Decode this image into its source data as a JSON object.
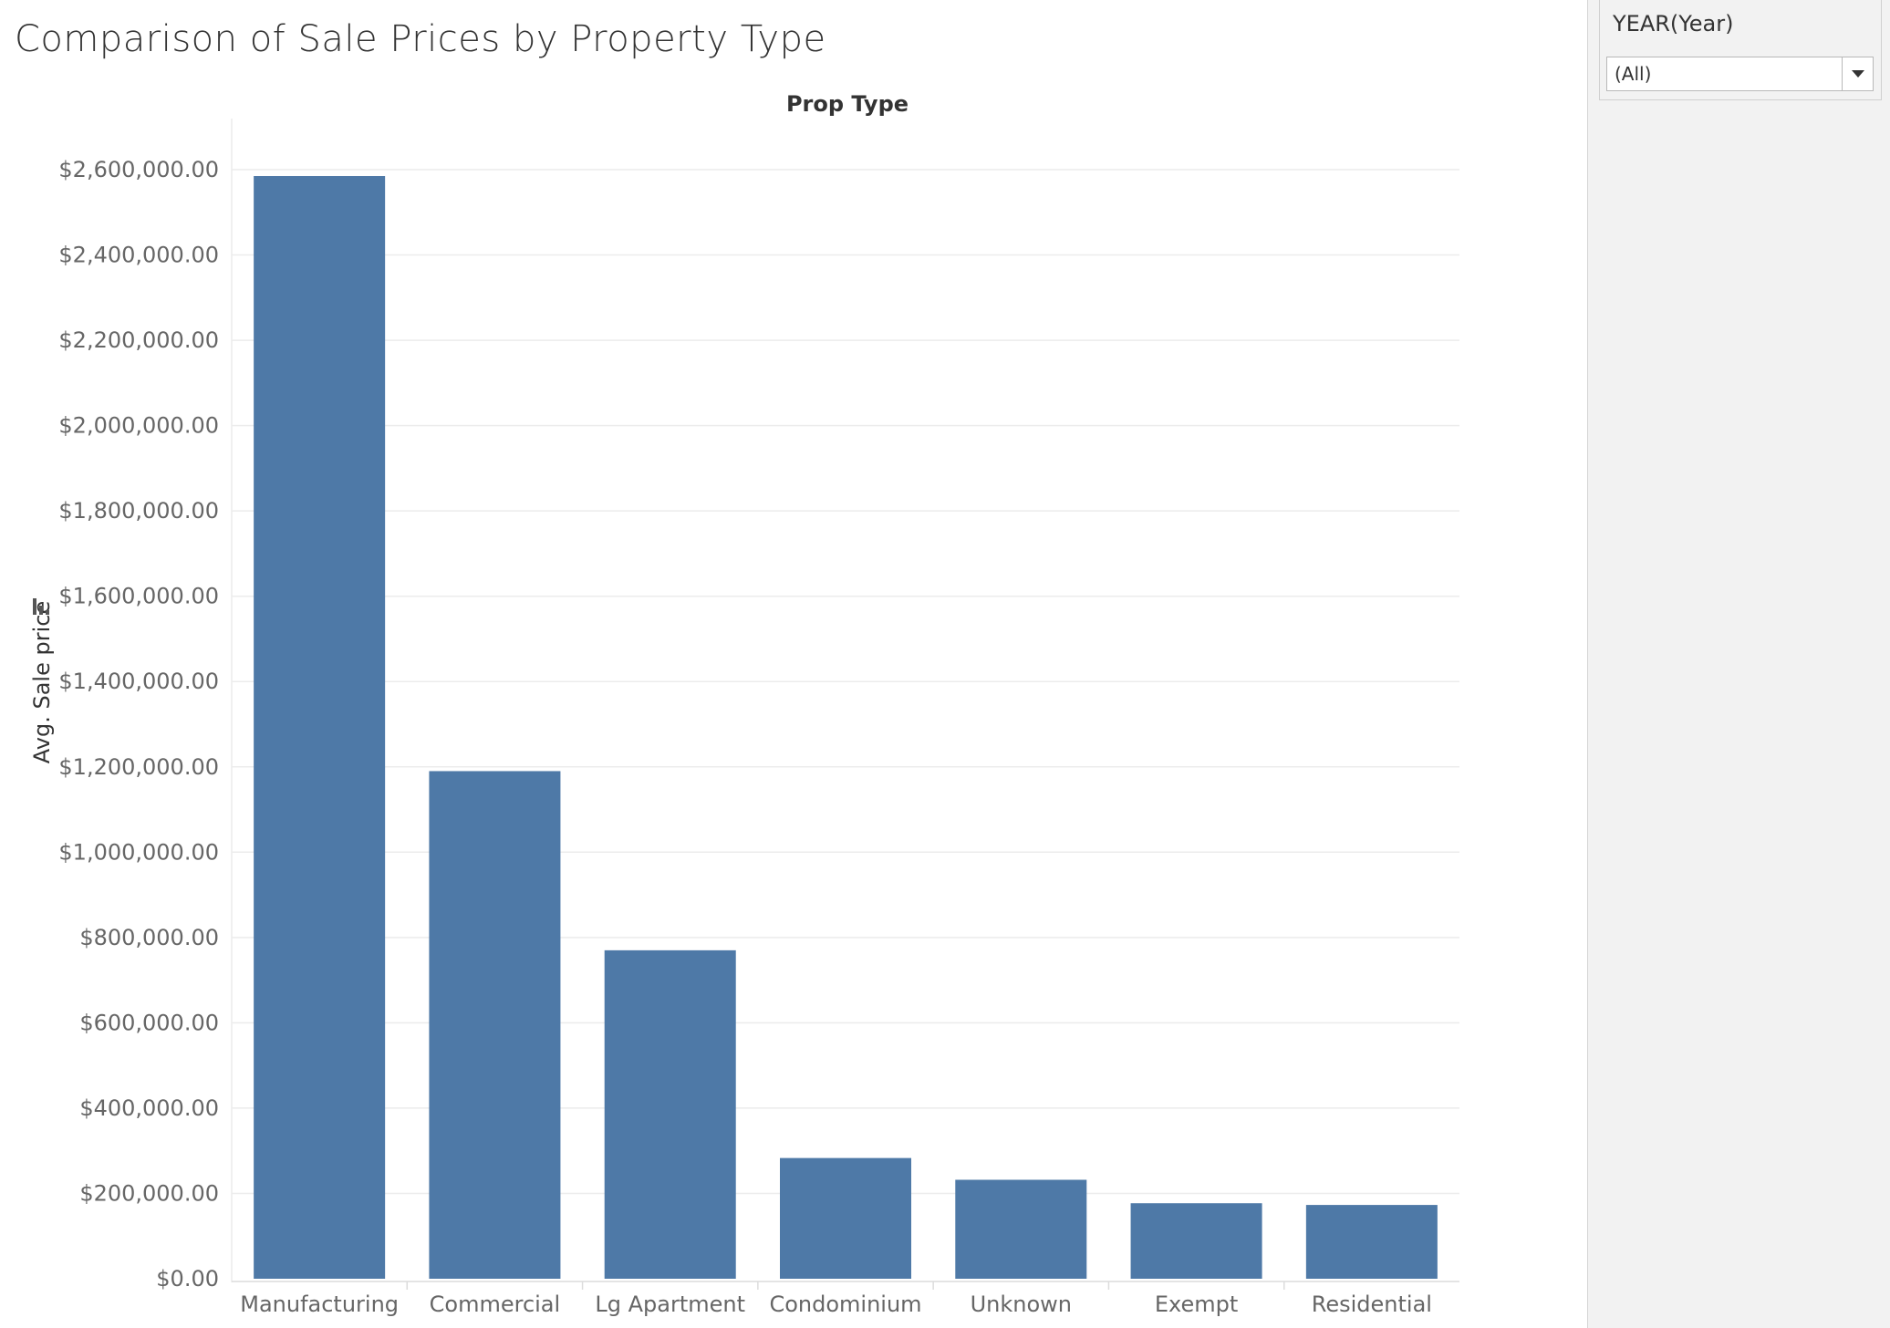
{
  "title": "Comparison of Sale Prices by Property Type",
  "filter": {
    "label": "YEAR(Year)",
    "value": "(All)"
  },
  "colors": {
    "bar": "#4e79a7",
    "grid": "#ececec",
    "axis_text": "#666666",
    "header_text": "#333333",
    "panel_bg": "#f2f2f2"
  },
  "chart_data": {
    "type": "bar",
    "title": "Comparison of Sale Prices by Property Type",
    "xlabel": "Prop Type",
    "ylabel": "Avg. Sale price",
    "categories": [
      "Manufacturing",
      "Commercial",
      "Lg Apartment",
      "Condominium",
      "Unknown",
      "Exempt",
      "Residential"
    ],
    "values": [
      2585000,
      1190000,
      770000,
      283000,
      232000,
      177000,
      173000
    ],
    "ylim": [
      0,
      2700000
    ],
    "yticks": [
      0,
      200000,
      400000,
      600000,
      800000,
      1000000,
      1200000,
      1400000,
      1600000,
      1800000,
      2000000,
      2200000,
      2400000,
      2600000
    ],
    "ytick_labels": [
      "$0.00",
      "$200,000.00",
      "$400,000.00",
      "$600,000.00",
      "$800,000.00",
      "$1,000,000.00",
      "$1,200,000.00",
      "$1,400,000.00",
      "$1,600,000.00",
      "$1,800,000.00",
      "$2,000,000.00",
      "$2,200,000.00",
      "$2,400,000.00",
      "$2,600,000.00"
    ],
    "grid": true,
    "legend": "none",
    "sort_icon": "sort-descending-icon"
  }
}
